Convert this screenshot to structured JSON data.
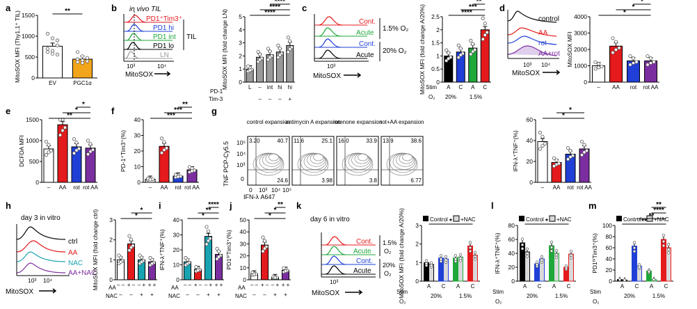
{
  "colors": {
    "black": "#000000",
    "red": "#e41a1c",
    "blue": "#1f3fd6",
    "green": "#1fa83a",
    "purple": "#7b2ea0",
    "grey": "#9a9a9a",
    "teal": "#17a3b0",
    "white": "#ffffff"
  },
  "panels": {
    "a": "a",
    "b": "b",
    "c": "c",
    "d": "d",
    "e": "e",
    "f": "f",
    "g": "g",
    "h": "h",
    "i": "i",
    "j": "j",
    "k": "k",
    "l": "l",
    "m": "m"
  },
  "texts": {
    "b_title": "in vivo TIL",
    "b_legend": [
      "PD1⁺Tim3⁺",
      "PD1 hi",
      "PD1 int",
      "PD1 lo",
      "LN"
    ],
    "b_TIL": "TIL",
    "c_legend": [
      "Cont.",
      "Acute",
      "Cont.",
      "Acute"
    ],
    "c_o2": [
      "1.5% O₂",
      "20% O₂"
    ],
    "d_legend": [
      "control",
      "AA",
      "rot",
      "AA+rot"
    ],
    "h_title": "day 3 in vitro",
    "h_legend": [
      "ctrl",
      "AA",
      "NAC",
      "AA+NAC"
    ],
    "k_title": "day 6 in vitro",
    "k_legend": [
      "Cont.",
      "Acute",
      "Cont.",
      "Acute"
    ],
    "k_o2": [
      "1.5%",
      "O₂",
      "20%",
      "O₂"
    ],
    "mitosox": "MitoSOX",
    "ticks_1e3_1e4": [
      "10³",
      "10⁴"
    ],
    "ticks_1e3": [
      "10³"
    ],
    "g_titles": [
      "control expansion",
      "antimycin A expansion",
      "rotenone expansion",
      "rot+AA expansion"
    ],
    "g_tl": [
      "3.20",
      "11.6",
      "16.0",
      "13.9"
    ],
    "g_tr": [
      "40.7",
      "25.1",
      "33.9",
      "38.6"
    ],
    "g_br": [
      "24.6",
      "3.98",
      "3.8",
      "6.77"
    ],
    "g_ylab": "TNF PCP-Cy5.5",
    "g_xlab": "IFN-λ A647",
    "g_yt": [
      "10⁵",
      "10⁴",
      "10³",
      "0"
    ],
    "g_xt": [
      "10³",
      "10⁴",
      "10⁵"
    ],
    "g_x0": "0",
    "b_pd1": "PD-1",
    "b_tim3": "Tim-3",
    "b_pd1_vals": [
      "L",
      "–",
      "int",
      "hi",
      "hi"
    ],
    "b_tim3_vals": [
      "–",
      "–",
      "–",
      "+"
    ],
    "stim": "Stim",
    "o2": "O₂",
    "ac": [
      "A",
      "C",
      "A",
      "C"
    ],
    "o2_vals": [
      "20%",
      "1.5%"
    ],
    "dash": "–",
    "plus": "+",
    "aa": "AA",
    "nac": "NAC",
    "pm_aa": [
      "–",
      "+",
      "–",
      "+"
    ],
    "pm_nac": [
      "–",
      "–",
      "+",
      "+"
    ],
    "cond": [
      "–",
      "AA",
      "rot",
      "rot",
      "AA"
    ],
    "legend_ctrl": "Control",
    "legend_nac": "+NAC",
    "ev_pgc": [
      "EV",
      "PGC1α"
    ]
  },
  "chart_data": [
    {
      "id": "a",
      "type": "bar",
      "ylabel": "MitoSOX MFI (Thy1.1⁺ TIL)",
      "categories": [
        "EV",
        "PGC1α"
      ],
      "values": [
        760,
        450
      ],
      "ylim": [
        0,
        1500
      ],
      "yticks": [
        0,
        500,
        1000,
        1500
      ],
      "sig": [
        "**"
      ],
      "points": [
        [
          1060,
          950,
          780,
          700,
          650,
          900,
          620,
          580,
          560
        ],
        [
          620,
          520,
          480,
          450,
          420,
          400,
          380,
          360
        ]
      ]
    },
    {
      "id": "b_bar",
      "type": "bar",
      "ylabel": "MitoSOX MFI (fold change LN)",
      "categories": [
        "L",
        "–",
        "int",
        "hi",
        "hi"
      ],
      "values": [
        1.0,
        1.9,
        2.1,
        2.3,
        2.8
      ],
      "ylim": [
        0,
        5
      ],
      "yticks": [
        0,
        1,
        2,
        3,
        4,
        5
      ],
      "sig": [
        "****",
        "****",
        "****",
        "***"
      ]
    },
    {
      "id": "c_bar",
      "type": "bar",
      "ylabel": "MitoSOX MFI (fold change A/20%)",
      "categories": [
        "A",
        "C",
        "A",
        "C"
      ],
      "values": [
        1.0,
        1.15,
        1.3,
        2.0
      ],
      "ylim": [
        0,
        2.5
      ],
      "yticks": [
        0,
        0.5,
        1.0,
        1.5,
        2.0,
        2.5
      ],
      "sig": [
        "****",
        "***",
        "**"
      ]
    },
    {
      "id": "d_bar",
      "type": "bar",
      "ylabel": "MitoSOX MFI",
      "categories": [
        "–",
        "AA",
        "rot",
        "rot AA"
      ],
      "values": [
        1000,
        2200,
        1300,
        1300
      ],
      "ylim": [
        0,
        4000
      ],
      "yticks": [
        0,
        1000,
        2000,
        3000,
        4000
      ],
      "sig": [
        "*",
        "*",
        "*"
      ]
    },
    {
      "id": "e",
      "type": "bar",
      "ylabel": "DCFDA MFI",
      "categories": [
        "–",
        "AA",
        "rot",
        "rot AA"
      ],
      "values": [
        800,
        1380,
        850,
        820
      ],
      "ylim": [
        0,
        1500
      ],
      "yticks": [
        0,
        500,
        1000,
        1500
      ],
      "sig": [
        "**",
        "*",
        "*"
      ]
    },
    {
      "id": "f",
      "type": "bar",
      "ylabel": "PD-1⁺Tim3⁺(%)",
      "categories": [
        "–",
        "AA",
        "rot",
        "rot AA"
      ],
      "values": [
        2,
        23,
        4,
        8
      ],
      "ylim": [
        0,
        40
      ],
      "yticks": [
        0,
        10,
        20,
        30,
        40
      ],
      "sig": [
        "***",
        "***",
        "**"
      ]
    },
    {
      "id": "g_bar",
      "type": "bar",
      "ylabel": "IFN-λ⁺TNF⁺(%)",
      "categories": [
        "–",
        "AA",
        "rot",
        "rot AA"
      ],
      "values": [
        39,
        19,
        27,
        32
      ],
      "ylim": [
        0,
        60
      ],
      "yticks": [
        0,
        20,
        40,
        60
      ],
      "sig": [
        "*",
        "*"
      ]
    },
    {
      "id": "h_bar",
      "type": "bar",
      "ylabel": "MitoSOX MFI (fold change ctrl)",
      "categories": [
        "– –",
        "+ –",
        "– +",
        "+ +"
      ],
      "values": [
        1.0,
        1.8,
        1.0,
        0.9
      ],
      "ylim": [
        0,
        3
      ],
      "yticks": [
        0,
        1,
        2,
        3
      ],
      "sig": [
        "*",
        "*"
      ]
    },
    {
      "id": "i",
      "type": "bar",
      "ylabel": "IFN-λ⁺TNF⁺(%)",
      "categories": [
        "– –",
        "+ –",
        "– +",
        "+ +"
      ],
      "values": [
        12,
        7,
        29,
        17
      ],
      "ylim": [
        0,
        40
      ],
      "yticks": [
        0,
        10,
        20,
        30,
        40
      ],
      "sig": [
        "*",
        "**",
        "****"
      ]
    },
    {
      "id": "j",
      "type": "bar",
      "ylabel": "PD1ʰⁱTim3⁺(%)",
      "categories": [
        "– –",
        "+ –",
        "– +",
        "+ +"
      ],
      "values": [
        5,
        29,
        2,
        8
      ],
      "ylim": [
        0,
        50
      ],
      "yticks": [
        0,
        10,
        20,
        30,
        40,
        50
      ],
      "sig": [
        "*",
        "*",
        "**"
      ]
    },
    {
      "id": "k_bar",
      "type": "bar",
      "ylabel": "MitoSOX MFI (fold change A/20%)",
      "categories": [
        "A",
        "C",
        "A",
        "C"
      ],
      "series": [
        {
          "name": "Control",
          "values": [
            1.0,
            1.25,
            1.25,
            1.9
          ]
        },
        {
          "name": "+NAC",
          "values": [
            0.9,
            1.2,
            1.3,
            1.4
          ]
        }
      ],
      "ylim": [
        0,
        3
      ],
      "yticks": [
        0,
        1,
        2,
        3
      ],
      "sig": [
        "*"
      ]
    },
    {
      "id": "l",
      "type": "bar",
      "ylabel": "IFN-λ⁺TNF⁺(%)",
      "categories": [
        "A",
        "C",
        "A",
        "C"
      ],
      "series": [
        {
          "name": "Control",
          "values": [
            55,
            25,
            51,
            20
          ]
        },
        {
          "name": "+NAC",
          "values": [
            42,
            32,
            40,
            39
          ]
        }
      ],
      "ylim": [
        0,
        80
      ],
      "yticks": [
        0,
        20,
        40,
        60,
        80
      ],
      "sig": [
        "*"
      ]
    },
    {
      "id": "m",
      "type": "bar",
      "ylabel": "PD1ʰⁱTim3⁺(%)",
      "categories": [
        "A",
        "C",
        "A",
        "C"
      ],
      "series": [
        {
          "name": "Control",
          "values": [
            3,
            63,
            18,
            75
          ]
        },
        {
          "name": "+NAC",
          "values": [
            2,
            27,
            3,
            60
          ]
        }
      ],
      "ylim": [
        0,
        100
      ],
      "yticks": [
        0,
        20,
        40,
        60,
        80,
        100
      ],
      "sig": [
        "**",
        "**",
        "****",
        "**"
      ]
    }
  ]
}
